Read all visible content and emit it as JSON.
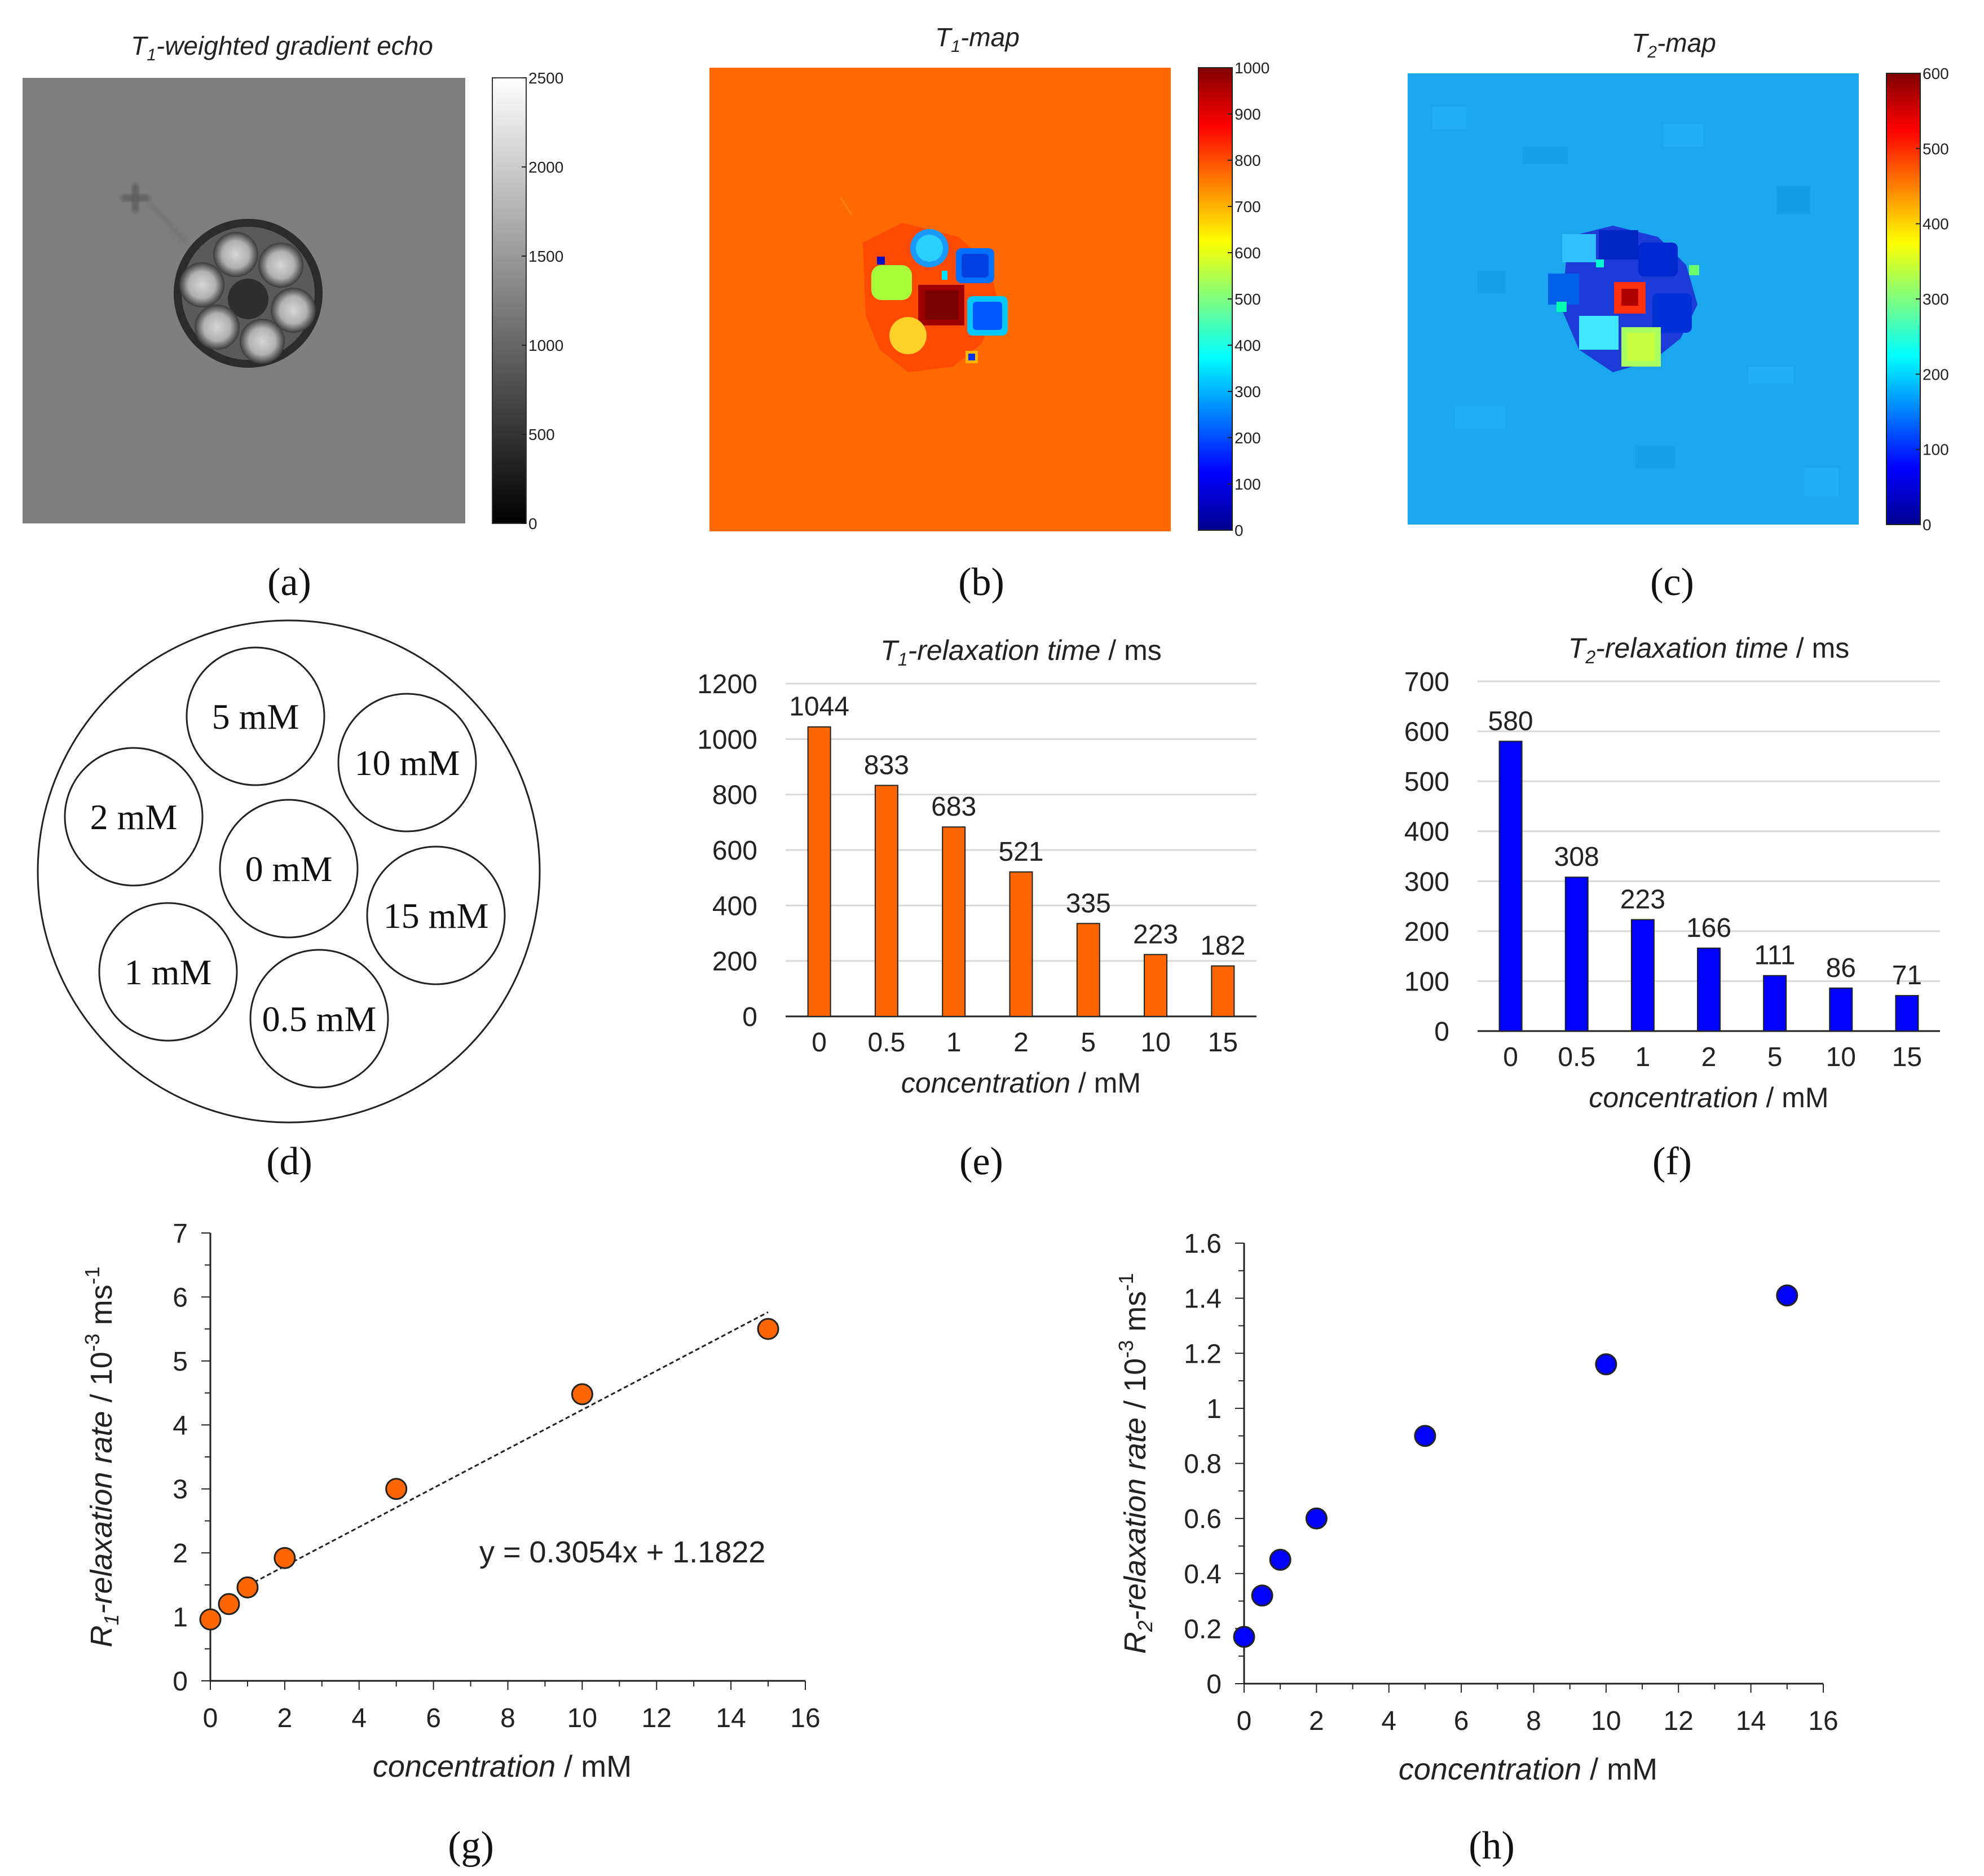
{
  "panel_labels": {
    "a": "(a)",
    "b": "(b)",
    "c": "(c)",
    "d": "(d)",
    "e": "(e)",
    "f": "(f)",
    "g": "(g)",
    "h": "(h)"
  },
  "colors": {
    "orange": "#ff6600",
    "blue": "#0000ff",
    "t1_background": "#ff6a00",
    "t2_background": "#1aa7ee",
    "gray_background": "#7d7d7d"
  },
  "panel_a": {
    "title_main": "T",
    "title_sub": "1",
    "title_rest": "-weighted gradient echo",
    "colorbar_ticks": [
      "2500",
      "2000",
      "1500",
      "1000",
      "500",
      "0"
    ]
  },
  "panel_b": {
    "title_main": "T",
    "title_sub": "1",
    "title_rest": "-map",
    "colorbar_ticks": [
      "1000",
      "900",
      "800",
      "700",
      "600",
      "500",
      "400",
      "300",
      "200",
      "100",
      "0"
    ]
  },
  "panel_c": {
    "title_main": "T",
    "title_sub": "2",
    "title_rest": "-map",
    "colorbar_ticks": [
      "600",
      "500",
      "400",
      "300",
      "200",
      "100",
      "0"
    ]
  },
  "panel_d": {
    "tubes": [
      "5 mM",
      "10 mM",
      "2 mM",
      "0 mM",
      "15 mM",
      "1 mM",
      "0.5 mM"
    ]
  },
  "chart_data": [
    {
      "id": "e",
      "type": "bar",
      "title": "T1-relaxation time / ms",
      "title_main": "T",
      "title_sub": "1",
      "title_italic": "-relaxation time",
      "title_unit": " / ms",
      "categories": [
        "0",
        "0.5",
        "1",
        "2",
        "5",
        "10",
        "15"
      ],
      "values": [
        1044,
        833,
        683,
        521,
        335,
        223,
        182
      ],
      "data_labels": [
        "1044",
        "833",
        "683",
        "521",
        "335",
        "223",
        "182"
      ],
      "yticks": [
        "0",
        "200",
        "400",
        "600",
        "800",
        "1000",
        "1200"
      ],
      "ylim": [
        0,
        1200
      ],
      "xlabel": "concentration / mM",
      "xlabel_italic": "concentration",
      "xlabel_unit": " / mM",
      "color": "#ff6600",
      "grid": true
    },
    {
      "id": "f",
      "type": "bar",
      "title": "T2-relaxation time / ms",
      "title_main": "T",
      "title_sub": "2",
      "title_italic": "-relaxation time",
      "title_unit": " / ms",
      "categories": [
        "0",
        "0.5",
        "1",
        "2",
        "5",
        "10",
        "15"
      ],
      "values": [
        580,
        308,
        223,
        166,
        111,
        86,
        71
      ],
      "data_labels": [
        "580",
        "308",
        "223",
        "166",
        "111",
        "86",
        "71"
      ],
      "yticks": [
        "0",
        "100",
        "200",
        "300",
        "400",
        "500",
        "600",
        "700"
      ],
      "ylim": [
        0,
        700
      ],
      "xlabel": "concentration / mM",
      "xlabel_italic": "concentration",
      "xlabel_unit": " / mM",
      "color": "#0000ff",
      "grid": true
    },
    {
      "id": "g",
      "type": "scatter",
      "x": [
        0,
        0.5,
        1,
        2,
        5,
        10,
        15
      ],
      "y": [
        0.96,
        1.2,
        1.46,
        1.92,
        3.0,
        4.48,
        5.5
      ],
      "xticks": [
        "0",
        "2",
        "4",
        "6",
        "8",
        "10",
        "12",
        "14",
        "16"
      ],
      "yticks": [
        "0",
        "1",
        "2",
        "3",
        "4",
        "5",
        "6",
        "7"
      ],
      "xlim": [
        0,
        16
      ],
      "ylim": [
        0,
        7
      ],
      "trendline": {
        "slope": 0.3054,
        "intercept": 1.1822,
        "x_range": [
          1,
          15
        ]
      },
      "equation": "y = 0.3054x + 1.1822",
      "xlabel": "concentration / mM",
      "xlabel_italic": "concentration",
      "xlabel_unit": "  / mM",
      "ylabel": "R1-relaxation rate / 10-3 ms-1",
      "ylabel_R": "R",
      "ylabel_sub": "1",
      "ylabel_italic": "-relaxation rate",
      "ylabel_unit": " / 10",
      "ylabel_exp1": "-3",
      "ylabel_ms": " ms",
      "ylabel_exp2": "-1",
      "color": "#ff6600"
    },
    {
      "id": "h",
      "type": "scatter",
      "x": [
        0,
        0.5,
        1,
        2,
        5,
        10,
        15
      ],
      "y": [
        0.17,
        0.32,
        0.45,
        0.6,
        0.9,
        1.16,
        1.41
      ],
      "xticks": [
        "0",
        "2",
        "4",
        "6",
        "8",
        "10",
        "12",
        "14",
        "16"
      ],
      "yticks": [
        "0",
        "0.2",
        "0.4",
        "0.6",
        "0.8",
        "1",
        "1.2",
        "1.4",
        "1.6"
      ],
      "xlim": [
        0,
        16
      ],
      "ylim": [
        0,
        1.6
      ],
      "xlabel": "concentration / mM",
      "xlabel_italic": "concentration",
      "xlabel_unit": "  / mM",
      "ylabel": "R2-relaxation rate / 10-3 ms-1",
      "ylabel_R": "R",
      "ylabel_sub": "2",
      "ylabel_italic": "-relaxation rate",
      "ylabel_unit": " / 10",
      "ylabel_exp1": "-3",
      "ylabel_ms": " ms",
      "ylabel_exp2": "-1",
      "color": "#0000ff"
    }
  ]
}
